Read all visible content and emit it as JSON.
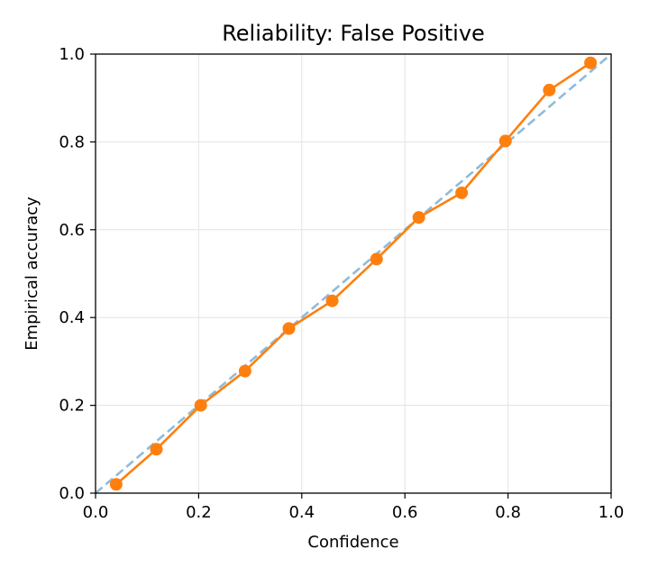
{
  "chart_data": {
    "type": "line",
    "title": "Reliability: False Positive",
    "xlabel": "Confidence",
    "ylabel": "Empirical accuracy",
    "xlim": [
      0.0,
      1.0
    ],
    "ylim": [
      0.0,
      1.0
    ],
    "x_ticks": [
      0.0,
      0.2,
      0.4,
      0.6,
      0.8,
      1.0
    ],
    "x_tick_labels": [
      "0.0",
      "0.2",
      "0.4",
      "0.6",
      "0.8",
      "1.0"
    ],
    "y_ticks": [
      0.0,
      0.2,
      0.4,
      0.6,
      0.8,
      1.0
    ],
    "y_tick_labels": [
      "0.0",
      "0.2",
      "0.4",
      "0.6",
      "0.8",
      "1.0"
    ],
    "grid": true,
    "legend": "none",
    "series": [
      {
        "style": "dashed",
        "color": "#8fbbd9",
        "x": [
          0.0,
          1.0
        ],
        "y": [
          0.0,
          1.0
        ]
      },
      {
        "style": "line-with-markers",
        "color": "#ff7f0e",
        "x": [
          0.04,
          0.118,
          0.204,
          0.29,
          0.375,
          0.459,
          0.545,
          0.627,
          0.71,
          0.795,
          0.88,
          0.96
        ],
        "y": [
          0.02,
          0.1,
          0.2,
          0.278,
          0.375,
          0.438,
          0.533,
          0.628,
          0.684,
          0.802,
          0.918,
          0.98
        ]
      }
    ]
  }
}
